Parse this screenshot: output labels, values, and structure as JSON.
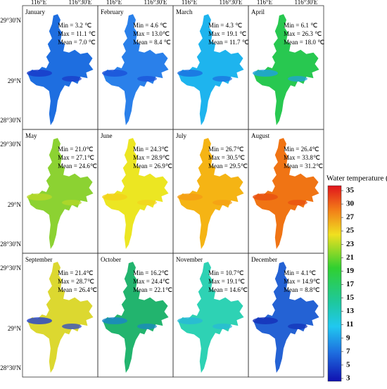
{
  "panels": [
    {
      "month": "January",
      "min": "Min = 3.2 ℃",
      "max": "Max = 11.1 ℃",
      "mean": "Mean = 7.0 ℃"
    },
    {
      "month": "February",
      "min": "Min = 4.6 ℃",
      "max": "Max = 13.0℃",
      "mean": "Mean = 8.4 ℃"
    },
    {
      "month": "March",
      "min": "Min = 4.3 ℃",
      "max": "Max = 19.1 ℃",
      "mean": "Mean = 11.7 ℃"
    },
    {
      "month": "April",
      "min": "Min = 6.1 ℃",
      "max": "Max = 26.3 ℃",
      "mean": "Mean = 18.0 ℃"
    },
    {
      "month": "May",
      "min": "Min = 21.0℃",
      "max": "Max = 27.1℃",
      "mean": "Mean = 24.6℃"
    },
    {
      "month": "June",
      "min": "Min = 24.3℃",
      "max": "Max = 28.9℃",
      "mean": "Mean = 26.9℃"
    },
    {
      "month": "July",
      "min": "Min = 26.7℃",
      "max": "Max = 30.5℃",
      "mean": "Mean = 29.5℃"
    },
    {
      "month": "August",
      "min": "Min = 26.4℃",
      "max": "Max = 33.8℃",
      "mean": "Mean = 31.2℃"
    },
    {
      "month": "September",
      "min": "Min = 21.4℃",
      "max": "Max = 28.7℃",
      "mean": "Mean = 26.4℃"
    },
    {
      "month": "October",
      "min": "Min = 16.2℃",
      "max": "Max = 24.4℃",
      "mean": "Mean = 22.1℃"
    },
    {
      "month": "November",
      "min": "Min = 10.7℃",
      "max": "Max = 19.1℃",
      "mean": "Mean = 14.6℃"
    },
    {
      "month": "December",
      "min": "Min = 4.1℃",
      "max": "Max = 14.9℃",
      "mean": "Mean = 8.8℃"
    }
  ],
  "lon_labels": [
    "116°E",
    "116°30'E"
  ],
  "lat_labels": [
    "29°30'N",
    "29°N",
    "28°30'N"
  ],
  "colorbar": {
    "title": "Water temperature (℃)",
    "ticks": [
      35,
      30,
      27,
      25,
      23,
      21,
      19,
      17,
      15,
      13,
      11,
      9,
      7,
      5,
      3
    ]
  }
}
